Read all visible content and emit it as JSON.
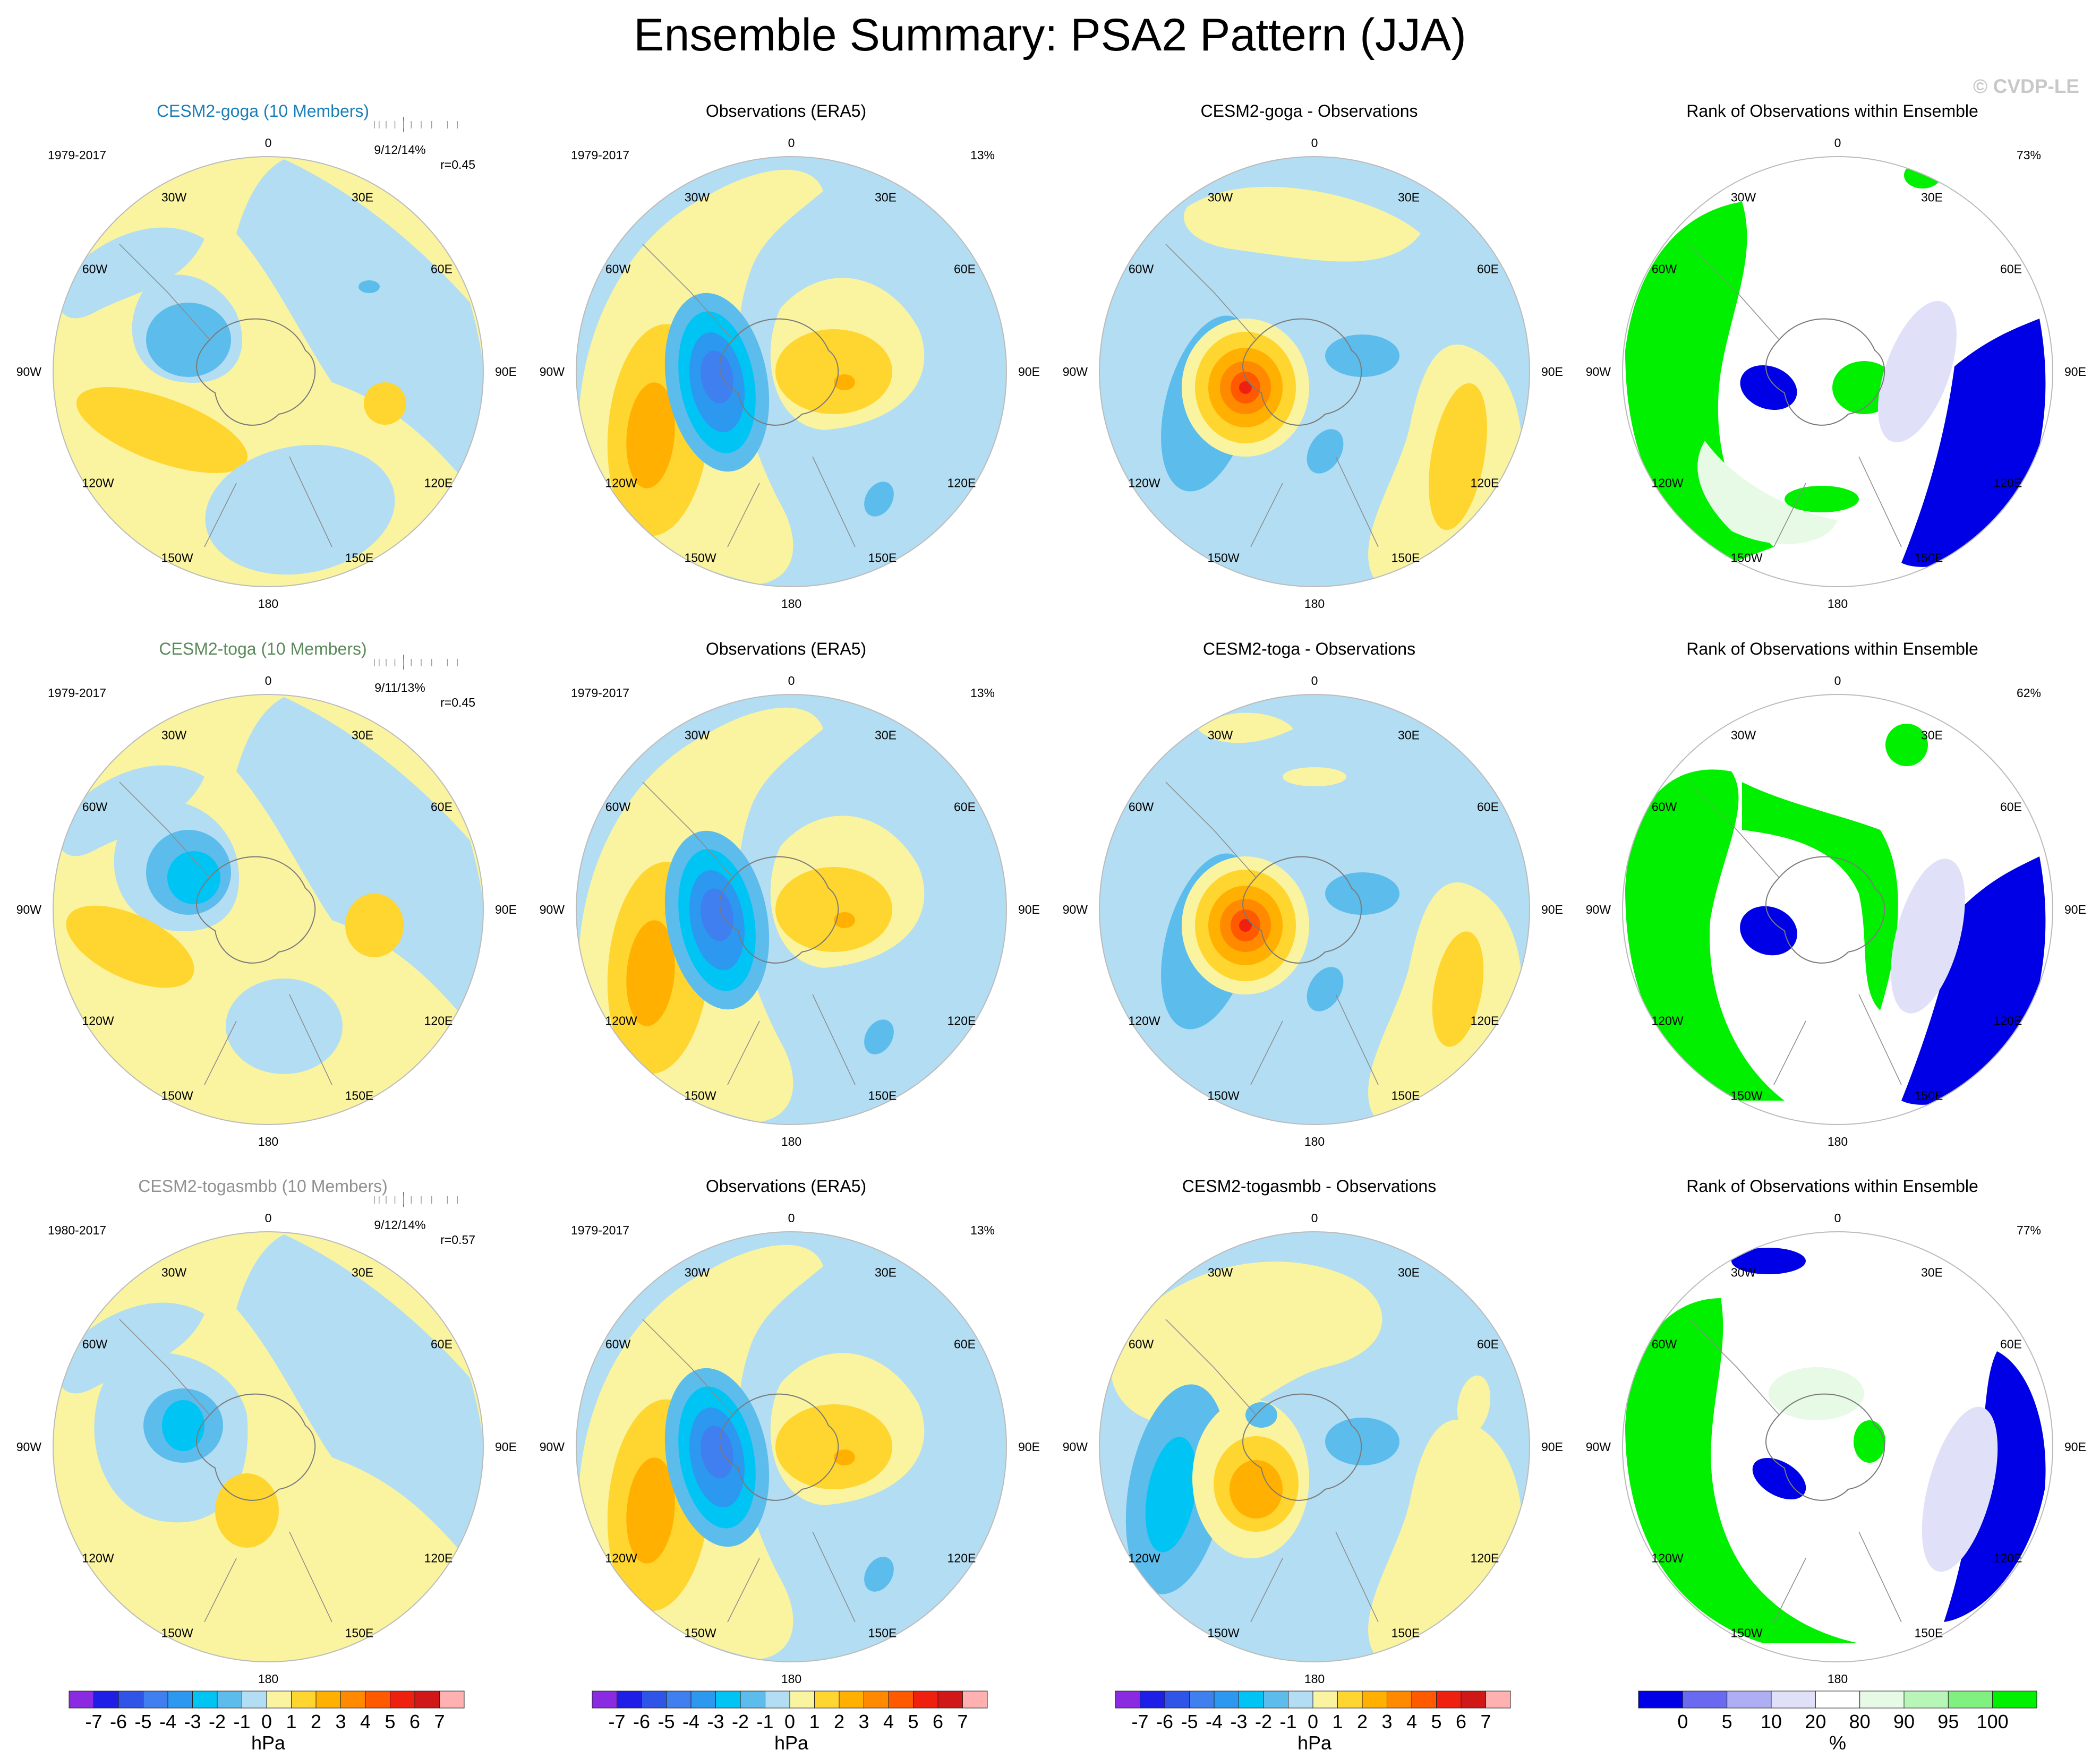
{
  "title": "Ensemble Summary: PSA2 Pattern (JJA)",
  "watermark": "© CVDP-LE",
  "lon_labels": [
    "0",
    "30E",
    "60E",
    "90E",
    "120E",
    "150E",
    "180",
    "150W",
    "120W",
    "90W",
    "60W",
    "30W"
  ],
  "colors": {
    "contour": [
      "#8a2be2",
      "#1e1ee6",
      "#2f55e8",
      "#3f7ff0",
      "#2c98f0",
      "#00c4f4",
      "#5cbcec",
      "#b3ddf2",
      "#faf4a0",
      "#ffd530",
      "#ffb000",
      "#ff8a00",
      "#ff5a00",
      "#f02010",
      "#d01818",
      "#ffb0b0"
    ],
    "rank": [
      "#0000e6",
      "#6a6af0",
      "#aeaef4",
      "#e0e0f8",
      "#ffffff",
      "#e6fae6",
      "#b8f6b8",
      "#80f080",
      "#00f000"
    ],
    "model_label": [
      "#1a7fb8",
      "#5a8a5a",
      "#909090"
    ]
  },
  "colorbar_hpa": {
    "ticks": [
      "-7",
      "-6",
      "-5",
      "-4",
      "-3",
      "-2",
      "-1",
      "0",
      "1",
      "2",
      "3",
      "4",
      "5",
      "6",
      "7"
    ],
    "unit": "hPa"
  },
  "colorbar_rank": {
    "ticks": [
      "0",
      "5",
      "10",
      "20",
      "80",
      "90",
      "95",
      "100"
    ],
    "unit": "%"
  },
  "rows": [
    {
      "model": {
        "title": "CESM2-goga (10 Members)",
        "period": "1979-2017",
        "stats": "9/12/14%",
        "r": "r=0.45"
      },
      "obs": {
        "title": "Observations (ERA5)",
        "period": "1979-2017",
        "pct": "13%"
      },
      "diff": {
        "title": "CESM2-goga - Observations"
      },
      "rank": {
        "title": "Rank of Observations within Ensemble",
        "pct": "73%"
      }
    },
    {
      "model": {
        "title": "CESM2-toga (10 Members)",
        "period": "1979-2017",
        "stats": "9/11/13%",
        "r": "r=0.45"
      },
      "obs": {
        "title": "Observations (ERA5)",
        "period": "1979-2017",
        "pct": "13%"
      },
      "diff": {
        "title": "CESM2-toga - Observations"
      },
      "rank": {
        "title": "Rank of Observations within Ensemble",
        "pct": "62%"
      }
    },
    {
      "model": {
        "title": "CESM2-togasmbb (10 Members)",
        "period": "1980-2017",
        "stats": "9/12/14%",
        "r": "r=0.57"
      },
      "obs": {
        "title": "Observations (ERA5)",
        "period": "1979-2017",
        "pct": "13%"
      },
      "diff": {
        "title": "CESM2-togasmbb - Observations"
      },
      "rank": {
        "title": "Rank of Observations within Ensemble",
        "pct": "77%"
      }
    }
  ],
  "chart_data": {
    "type": "heatmap",
    "projection": "south-polar stereographic",
    "variable": "PSA2 Pattern (JJA)",
    "colorbar_hpa_range": [
      -7,
      7
    ],
    "colorbar_rank_levels": [
      0,
      5,
      10,
      20,
      80,
      90,
      95,
      100
    ]
  }
}
